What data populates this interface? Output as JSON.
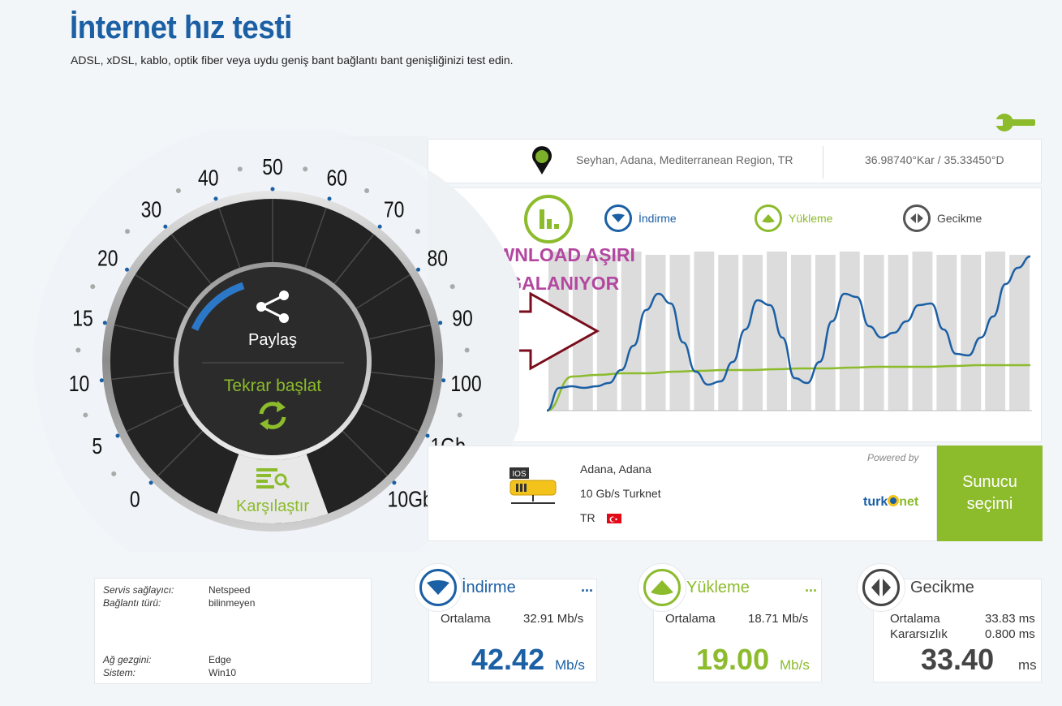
{
  "header": {
    "title": "İnternet hız testi",
    "subtitle": "ADSL, xDSL, kablo, optik fiber veya uydu geniş bant bağlantı bant genişliğinizi test edin."
  },
  "location": {
    "place": "Seyhan, Adana, Mediterranean Region, TR",
    "coords": "36.98740°Kar / 35.33450°D"
  },
  "legend": {
    "download": "İndirme",
    "upload": "Yükleme",
    "latency": "Gecikme"
  },
  "annotation": {
    "line1": "DOWNLOAD AŞIRI",
    "line2": "DALGALANIYOR"
  },
  "gauge": {
    "share_label": "Paylaş",
    "restart_label": "Tekrar başlat",
    "compare_label": "Karşılaştır",
    "scale_labels": [
      "0",
      "5",
      "10",
      "15",
      "20",
      "30",
      "40",
      "50",
      "60",
      "70",
      "80",
      "90",
      "100",
      "1Gb",
      "10Gb"
    ]
  },
  "server": {
    "city": "Adana, Adana",
    "provider": "10 Gb/s Turknet",
    "country": "TR",
    "icon_label": "IOS",
    "powered_by": "Powered by",
    "brand_turk": "turk",
    "brand_net": "net",
    "select_label_1": "Sunucu",
    "select_label_2": "seçimi"
  },
  "info": {
    "isp_key": "Servis sağlayıcı:",
    "isp_val": "Netspeed",
    "conn_key": "Bağlantı türü:",
    "conn_val": "bilinmeyen",
    "browser_key": "Ağ gezgini:",
    "browser_val": "Edge",
    "os_key": "Sistem:",
    "os_val": "Win10"
  },
  "stats": {
    "download": {
      "title": "İndirme",
      "more": "...",
      "avg_label": "Ortalama",
      "avg_value": "32.91 Mb/s",
      "value": "42.42",
      "unit": "Mb/s"
    },
    "upload": {
      "title": "Yükleme",
      "more": "...",
      "avg_label": "Ortalama",
      "avg_value": "18.71 Mb/s",
      "value": "19.00",
      "unit": "Mb/s"
    },
    "latency": {
      "title": "Gecikme",
      "avg_label": "Ortalama",
      "avg_value": "33.83 ms",
      "jitter_label": "Kararsızlık",
      "jitter_value": "0.800 ms",
      "value": "33.40",
      "unit": "ms"
    }
  },
  "colors": {
    "blue": "#1b5fa4",
    "green": "#8cbb2c",
    "dark": "#222222",
    "annotation": "#b347a0",
    "arrow": "#7a0c1c"
  },
  "chart_data": {
    "type": "line",
    "bars": 20,
    "download_curve": [
      0,
      0.14,
      0.15,
      0.14,
      0.15,
      0.17,
      0.25,
      0.4,
      0.62,
      0.72,
      0.66,
      0.42,
      0.24,
      0.16,
      0.18,
      0.3,
      0.5,
      0.68,
      0.65,
      0.45,
      0.2,
      0.17,
      0.3,
      0.55,
      0.72,
      0.7,
      0.52,
      0.45,
      0.48,
      0.55,
      0.65,
      0.66,
      0.5,
      0.35,
      0.34,
      0.45,
      0.58,
      0.78,
      0.88,
      0.95
    ],
    "upload_curve": [
      0,
      0.21,
      0.22,
      0.23,
      0.23,
      0.24,
      0.245,
      0.25,
      0.25,
      0.255,
      0.26,
      0.26,
      0.265,
      0.27,
      0.27,
      0.27,
      0.275,
      0.28,
      0.28,
      0.28
    ]
  }
}
